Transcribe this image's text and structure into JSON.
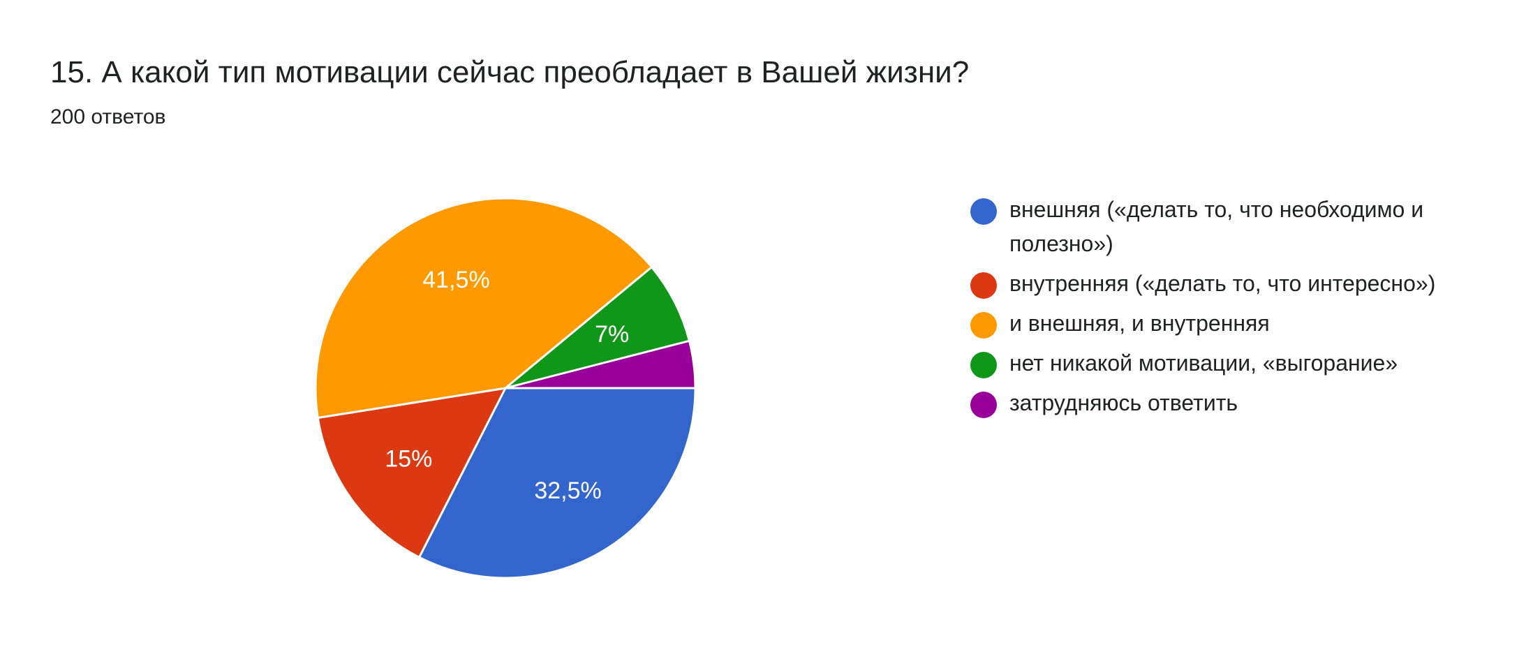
{
  "question": {
    "title": "15. А какой тип мотивации сейчас преобладает в Вашей жизни?",
    "responses": "200 ответов"
  },
  "chart_data": {
    "type": "pie",
    "total_responses": 200,
    "legend_position": "right",
    "slices": [
      {
        "label": "внешняя («делать то, что необходимо и полезно»)",
        "value": 32.5,
        "display": "32,5%",
        "color": "#3366cc"
      },
      {
        "label": "внутренняя («делать то, что интересно»)",
        "value": 15,
        "display": "15%",
        "color": "#dc3912"
      },
      {
        "label": "и внешняя, и внутренняя",
        "value": 41.5,
        "display": "41,5%",
        "color": "#ff9900"
      },
      {
        "label": "нет никакой мотивации, «выгорание»",
        "value": 7,
        "display": "7%",
        "color": "#109618"
      },
      {
        "label": "затрудняюсь ответить",
        "value": 4,
        "display": "",
        "color": "#990099"
      }
    ]
  }
}
